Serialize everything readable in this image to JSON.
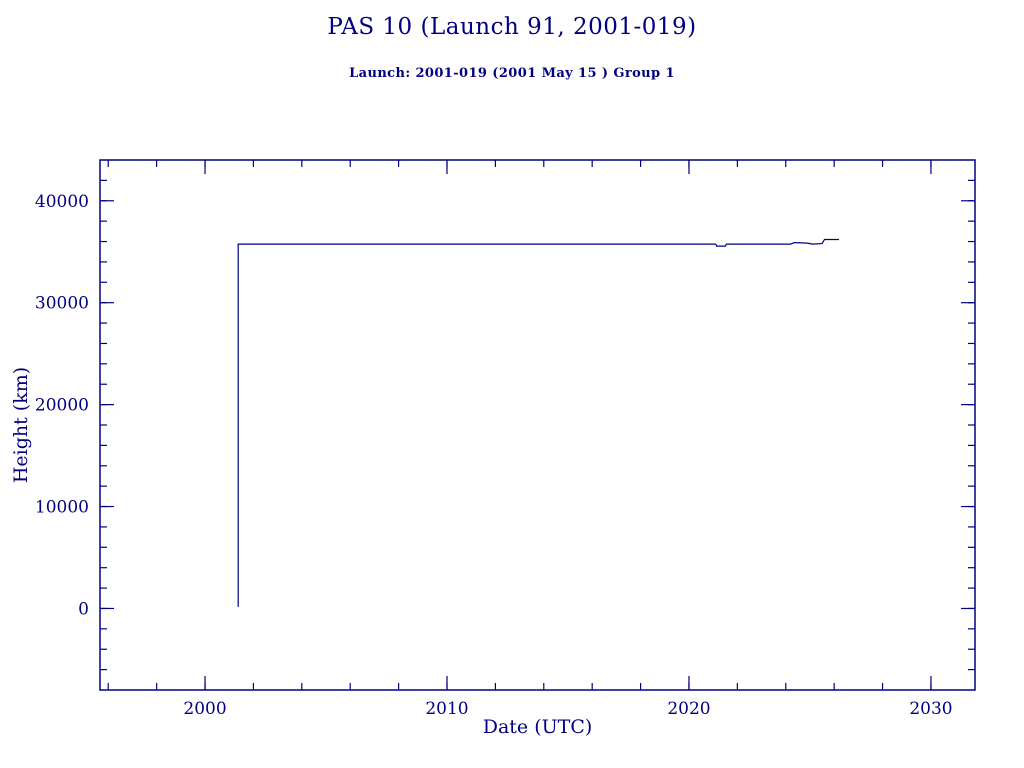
{
  "colors": {
    "ink": "#000080",
    "background": "#ffffff"
  },
  "chart_data": {
    "type": "line",
    "title": "PAS 10 (Launch 91, 2001-019)",
    "subtitle": "Launch: 2001-019  (2001 May 15 )  Group 1",
    "xlabel": "Date (UTC)",
    "ylabel": "Height (km)",
    "xlim": [
      1995.66,
      2031.82
    ],
    "ylim": [
      -8000,
      44000
    ],
    "xticks": [
      2000,
      2010,
      2020,
      2030
    ],
    "yticks": [
      0,
      10000,
      20000,
      30000,
      40000
    ],
    "xtick_minor_step": 2,
    "ytick_minor_step": 2000,
    "grid": false,
    "legend": "none",
    "series": [
      {
        "name": "height-km",
        "color": "#000080",
        "points": [
          [
            2001.37,
            150
          ],
          [
            2001.37,
            35750
          ],
          [
            2021.1,
            35750
          ],
          [
            2021.15,
            35550
          ],
          [
            2021.5,
            35550
          ],
          [
            2021.55,
            35750
          ],
          [
            2024.2,
            35750
          ],
          [
            2024.35,
            35900
          ],
          [
            2024.9,
            35850
          ],
          [
            2025.1,
            35750
          ],
          [
            2025.5,
            35800
          ],
          [
            2025.6,
            36200
          ],
          [
            2026.2,
            36200
          ]
        ]
      }
    ]
  }
}
